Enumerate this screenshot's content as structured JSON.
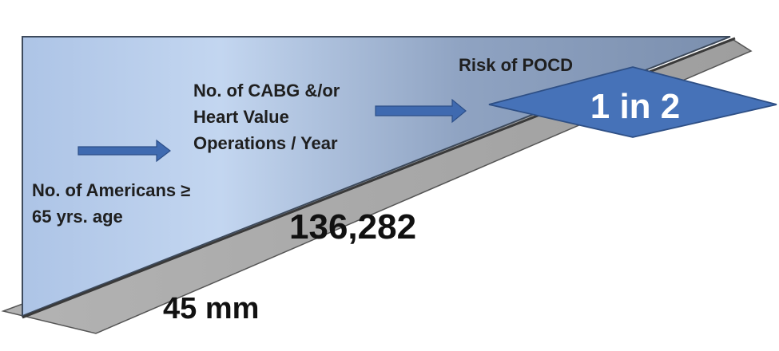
{
  "stages": {
    "americans": {
      "label_lines": [
        "No. of Americans ≥",
        "65 yrs. age"
      ],
      "value": "45 mm"
    },
    "cabg": {
      "label_lines": [
        "No. of CABG &/or",
        "Heart Value",
        "Operations / Year"
      ],
      "value": "136,282"
    },
    "risk": {
      "label": "Risk of POCD",
      "value": "1 in 2"
    }
  },
  "colors": {
    "upper_wedge_light": "#c5d9f1",
    "upper_wedge_dark": "#8497b0",
    "lower_wedge": "#a6a6a6",
    "wedge_edge": "#4a4a4a",
    "arrow_fill": "#3f6ab0",
    "diamond_fill": "#4672b8",
    "diamond_edge": "#2e4f85"
  }
}
